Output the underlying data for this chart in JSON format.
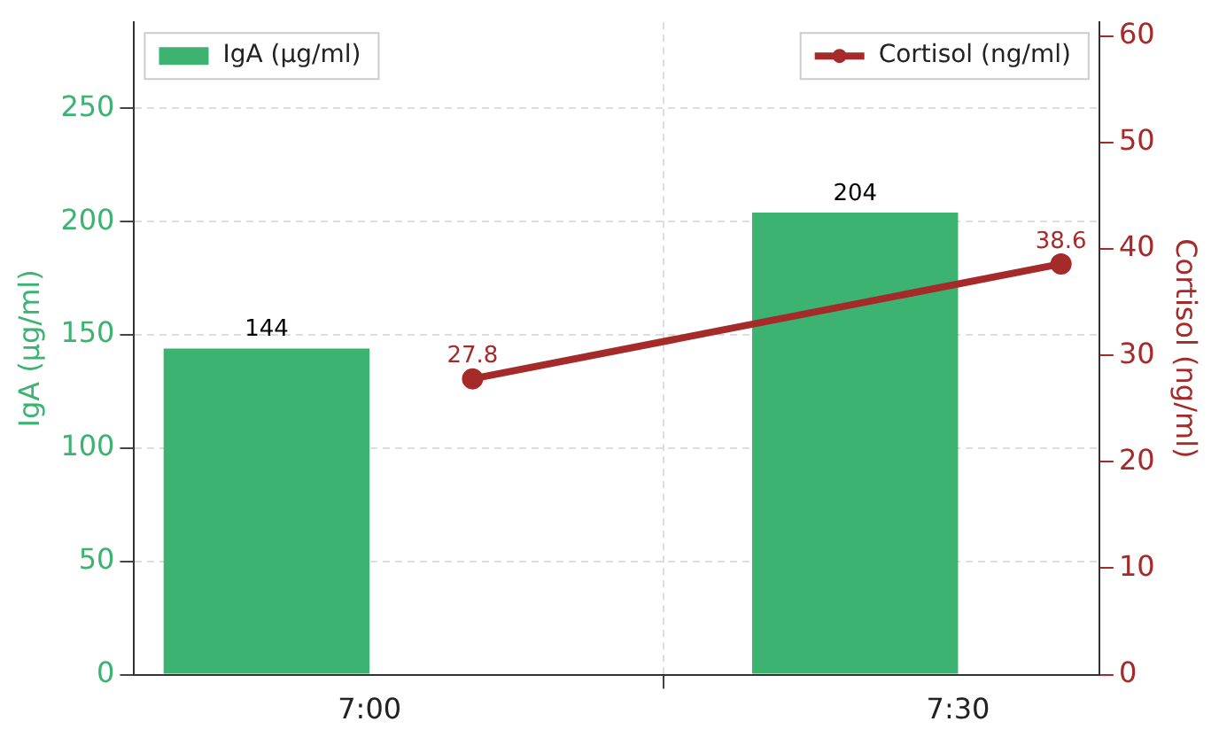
{
  "chart_data": {
    "type": "bar",
    "ylabel": "IgA (µg/ml)",
    "y2label": "Cortisol (ng/ml)",
    "series": [
      {
        "name": "IgA (µg/ml)",
        "color": "#3cb371",
        "x": [
          6.9125,
          7.4125
        ],
        "values": [
          144,
          204
        ]
      },
      {
        "name": "Cortisol (ng/ml)",
        "type": "line",
        "axis": "y2",
        "color": "#a52a2a",
        "x": [
          7.0875,
          7.5875
        ],
        "values": [
          27.8,
          38.6
        ]
      }
    ],
    "xlim": [
      6.8,
      7.62
    ],
    "xticks": [
      {
        "value": 7,
        "label": "7:00"
      },
      {
        "value": 7.5,
        "label": "7:30"
      }
    ],
    "ylim": [
      0,
      288
    ],
    "yticks": [
      0,
      50,
      100,
      150,
      200,
      250
    ],
    "y2lim": [
      0,
      61.3
    ],
    "y2ticks": [
      0,
      10,
      20,
      30,
      40,
      50,
      60
    ],
    "grid": true,
    "legend": "top",
    "marker": "circle",
    "line_style": "solid",
    "data_labels": true
  }
}
